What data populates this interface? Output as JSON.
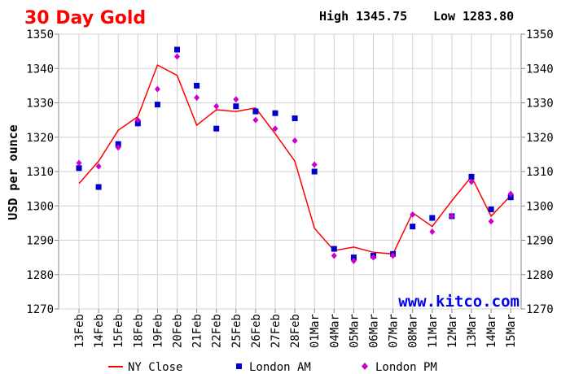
{
  "chart_data": {
    "type": "line",
    "title": "30 Day Gold",
    "high_label": "High",
    "high_value": "1345.75",
    "low_label": "Low",
    "low_value": "1283.80",
    "ylabel": "USD per ounce",
    "watermark": "www.kitco.com",
    "ylim": [
      1270,
      1350
    ],
    "yticks": [
      1270,
      1280,
      1290,
      1300,
      1310,
      1320,
      1330,
      1340,
      1350
    ],
    "grid": true,
    "legend_position": "bottom",
    "categories": [
      "13Feb",
      "14Feb",
      "15Feb",
      "18Feb",
      "19Feb",
      "20Feb",
      "21Feb",
      "22Feb",
      "25Feb",
      "26Feb",
      "27Feb",
      "28Feb",
      "01Mar",
      "04Mar",
      "05Mar",
      "06Mar",
      "07Mar",
      "08Mar",
      "11Mar",
      "12Mar",
      "13Mar",
      "14Mar",
      "15Mar"
    ],
    "series": [
      {
        "name": "NY Close",
        "kind": "line",
        "color": "#ff0000",
        "values": [
          1306.5,
          1313.0,
          1322.0,
          1326.0,
          1341.0,
          1338.0,
          1323.5,
          1328.0,
          1327.5,
          1328.5,
          1321.0,
          1313.0,
          1293.5,
          1287.0,
          1288.0,
          1286.5,
          1286.0,
          1298.0,
          1294.0,
          1301.5,
          1308.5,
          1297.0,
          1303.0
        ]
      },
      {
        "name": "London AM",
        "kind": "square",
        "color": "#0000cc",
        "values": [
          1311.0,
          1305.5,
          1318.0,
          1324.0,
          1329.5,
          1345.5,
          1335.0,
          1322.5,
          1329.0,
          1327.5,
          1327.0,
          1325.5,
          1310.0,
          1287.5,
          1285.0,
          1285.5,
          1286.0,
          1294.0,
          1296.5,
          1297.0,
          1308.5,
          1299.0,
          1302.5
        ]
      },
      {
        "name": "London PM",
        "kind": "diamond",
        "color": "#cc00cc",
        "values": [
          1312.5,
          1311.5,
          1317.0,
          1325.0,
          1334.0,
          1343.5,
          1331.5,
          1329.0,
          1331.0,
          1325.0,
          1322.5,
          1319.0,
          1312.0,
          1285.5,
          1284.0,
          1285.0,
          1285.5,
          1297.5,
          1292.5,
          1297.0,
          1307.0,
          1295.5,
          1303.5
        ]
      }
    ]
  }
}
